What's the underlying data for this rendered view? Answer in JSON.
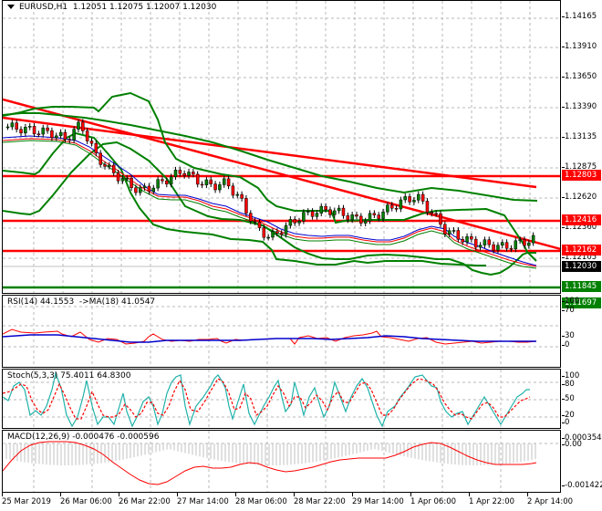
{
  "header": {
    "symbol_title": "EURUSD,H1",
    "ohlc": "1.12051 1.12075 1.12007 1.12030"
  },
  "price_axis": {
    "ticks": [
      "1.14165",
      "1.13910",
      "1.13650",
      "1.13390",
      "1.13135",
      "1.12875",
      "1.12620",
      "1.12360",
      "1.12105",
      "1.11590"
    ],
    "labels": [
      {
        "value": "1.12803",
        "color": "#ff0000"
      },
      {
        "value": "1.12416",
        "color": "#ff0000"
      },
      {
        "value": "1.12162",
        "color": "#ff0000"
      },
      {
        "value": "1.12030",
        "color": "#000000"
      },
      {
        "value": "1.11845",
        "color": "#008000"
      },
      {
        "value": "1.11697",
        "color": "#008000"
      }
    ]
  },
  "rsi": {
    "title": "RSI(14) 44.1553  ->MA(18) 41.0547",
    "ticks": [
      "100",
      "70",
      "30",
      "0"
    ]
  },
  "stoch": {
    "title": "Stoch(5,3,3) 75.4011 64.8300",
    "ticks": [
      "100",
      "80",
      "50",
      "20",
      "0"
    ]
  },
  "macd": {
    "title": "MACD(12,26,9) -0.000476 -0.000596",
    "ticks": [
      "0.000354",
      "0.00",
      "-0.001422"
    ]
  },
  "time_axis": {
    "labels": [
      "25 Mar 2019",
      "26 Mar 06:00",
      "26 Mar 22:00",
      "27 Mar 14:00",
      "28 Mar 06:00",
      "28 Mar 22:00",
      "29 Mar 14:00",
      "1 Apr 06:00",
      "1 Apr 22:00",
      "2 Apr 14:00"
    ]
  },
  "colors": {
    "bull_candle": "#008000",
    "bear_candle": "#ff0000",
    "bollinger": "#008000",
    "resistance": "#ff0000",
    "support": "#008000",
    "rsi_line": "#ff0000",
    "rsi_ma": "#0000cd",
    "stoch_main": "#20b2aa",
    "stoch_signal": "#ff0000",
    "macd_hist": "#c0c0c0",
    "macd_signal": "#ff0000"
  },
  "chart_data": {
    "type": "candlestick",
    "title": "EURUSD,H1",
    "ohlc_last": {
      "open": 1.12051,
      "high": 1.12075,
      "low": 1.12007,
      "close": 1.1203
    },
    "x_ticks": [
      "25 Mar 2019",
      "26 Mar 06:00",
      "26 Mar 22:00",
      "27 Mar 14:00",
      "28 Mar 06:00",
      "28 Mar 22:00",
      "29 Mar 14:00",
      "1 Apr 06:00",
      "1 Apr 22:00",
      "2 Apr 14:00"
    ],
    "y_ticks": [
      1.14165,
      1.1391,
      1.1365,
      1.1339,
      1.13135,
      1.12875,
      1.1262,
      1.1236,
      1.12105,
      1.1159
    ],
    "ylim": [
      1.1155,
      1.143
    ],
    "horizontal_levels": [
      {
        "value": 1.12803,
        "color": "red"
      },
      {
        "value": 1.12416,
        "color": "red"
      },
      {
        "value": 1.12162,
        "color": "red"
      },
      {
        "value": 1.11845,
        "color": "green"
      },
      {
        "value": 1.11697,
        "color": "green"
      }
    ],
    "approx_close_path": [
      1.1312,
      1.131,
      1.1308,
      1.1306,
      1.13,
      1.1315,
      1.1285,
      1.127,
      1.126,
      1.125,
      1.1255,
      1.1262,
      1.127,
      1.126,
      1.1255,
      1.1258,
      1.124,
      1.1215,
      1.1205,
      1.1215,
      1.1225,
      1.123,
      1.1232,
      1.1228,
      1.1222,
      1.1225,
      1.1232,
      1.124,
      1.1245,
      1.123,
      1.1212,
      1.1205,
      1.12,
      1.1198,
      1.1196,
      1.12,
      1.1203
    ],
    "indicators": [
      {
        "name": "RSI(14)",
        "value": 44.1553,
        "ma_name": "MA(18)",
        "ma_value": 41.0547,
        "levels": [
          100,
          70,
          30,
          0
        ]
      },
      {
        "name": "Stoch(5,3,3)",
        "main": 75.4011,
        "signal": 64.83,
        "levels": [
          100,
          80,
          50,
          20,
          0
        ]
      },
      {
        "name": "MACD(12,26,9)",
        "macd": -0.000476,
        "signal": -0.000596,
        "range": [
          -0.001422,
          0.000354
        ]
      }
    ],
    "grid": true
  }
}
